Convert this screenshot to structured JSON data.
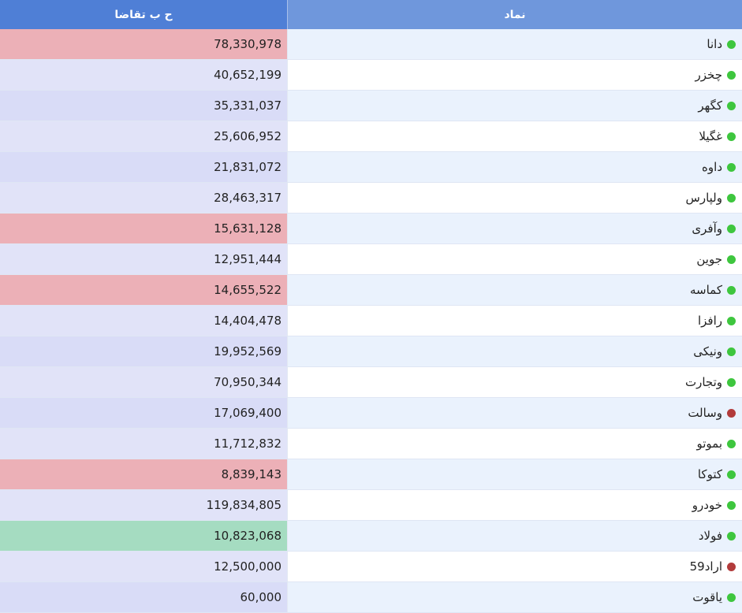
{
  "header": {
    "demand_label": "ح ب تقاضا",
    "symbol_label": "نماد"
  },
  "colors": {
    "header_left": "#4f7fd6",
    "header_right": "#6f97dc",
    "red_highlight": "#ecb0b7",
    "green_highlight": "#a5dcc1",
    "lavender": "#e1e3f8",
    "status_green": "#3ec63e",
    "status_red": "#b23b3b"
  },
  "rows": [
    {
      "symbol": "دانا",
      "demand": "78,330,978",
      "status": "green",
      "highlight": "red"
    },
    {
      "symbol": "چخزر",
      "demand": "40,652,199",
      "status": "green",
      "highlight": "lavender"
    },
    {
      "symbol": "کگهر",
      "demand": "35,331,037",
      "status": "green",
      "highlight": "lavender"
    },
    {
      "symbol": "غگیلا",
      "demand": "25,606,952",
      "status": "green",
      "highlight": "lavender"
    },
    {
      "symbol": "داوه",
      "demand": "21,831,072",
      "status": "green",
      "highlight": "lavender"
    },
    {
      "symbol": "ولپارس",
      "demand": "28,463,317",
      "status": "green",
      "highlight": "lavender"
    },
    {
      "symbol": "وآفری",
      "demand": "15,631,128",
      "status": "green",
      "highlight": "red"
    },
    {
      "symbol": "جوین",
      "demand": "12,951,444",
      "status": "green",
      "highlight": "lavender"
    },
    {
      "symbol": "کماسه",
      "demand": "14,655,522",
      "status": "green",
      "highlight": "red"
    },
    {
      "symbol": "رافزا",
      "demand": "14,404,478",
      "status": "green",
      "highlight": "lavender"
    },
    {
      "symbol": "ونیکی",
      "demand": "19,952,569",
      "status": "green",
      "highlight": "lavender"
    },
    {
      "symbol": "وتجارت",
      "demand": "70,950,344",
      "status": "green",
      "highlight": "lavender"
    },
    {
      "symbol": "وسالت",
      "demand": "17,069,400",
      "status": "red",
      "highlight": "lavender"
    },
    {
      "symbol": "بموتو",
      "demand": "11,712,832",
      "status": "green",
      "highlight": "lavender"
    },
    {
      "symbol": "کتوکا",
      "demand": "8,839,143",
      "status": "green",
      "highlight": "red"
    },
    {
      "symbol": "خودرو",
      "demand": "119,834,805",
      "status": "green",
      "highlight": "lavender"
    },
    {
      "symbol": "فولاد",
      "demand": "10,823,068",
      "status": "green",
      "highlight": "green"
    },
    {
      "symbol": "اراد59",
      "demand": "12,500,000",
      "status": "red",
      "highlight": "lavender"
    },
    {
      "symbol": "یاقوت",
      "demand": "60,000",
      "status": "green",
      "highlight": "lavender"
    }
  ]
}
